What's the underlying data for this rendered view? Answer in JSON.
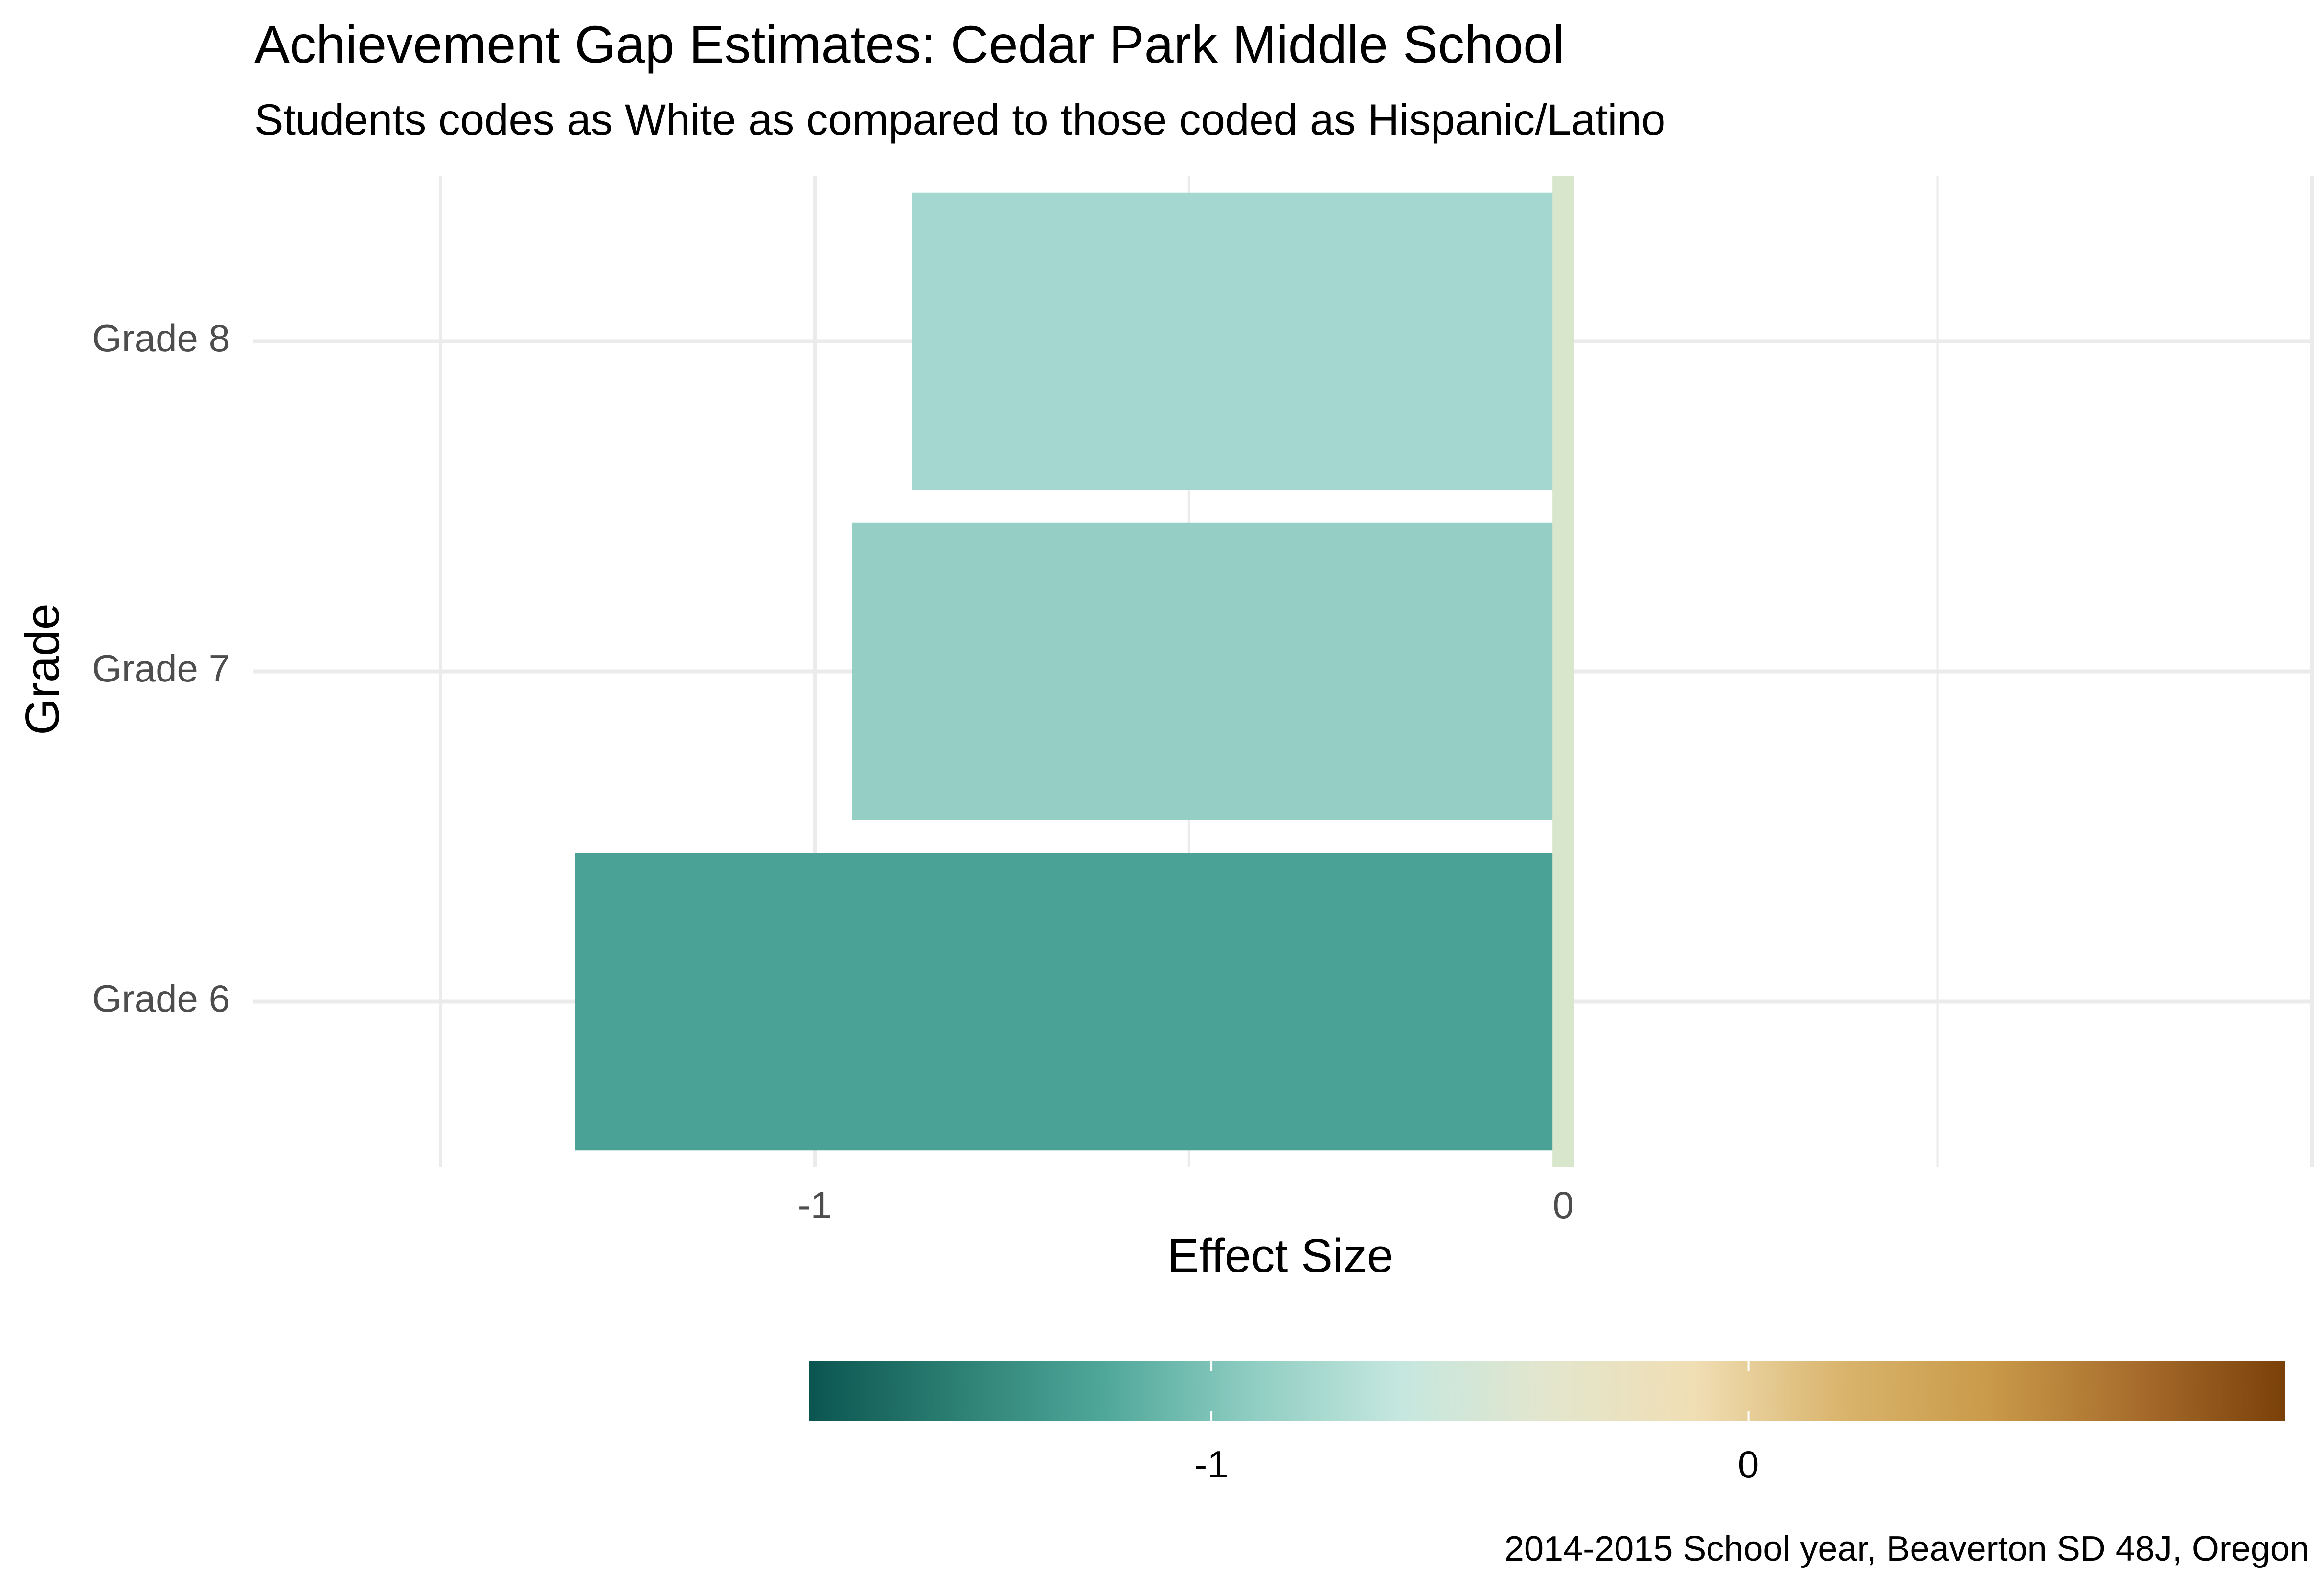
{
  "chart_data": {
    "type": "bar",
    "orientation": "horizontal",
    "title": "Achievement Gap Estimates: Cedar Park Middle School",
    "subtitle": "Students codes as White as compared to those coded as Hispanic/Latino",
    "xlabel": "Effect Size",
    "ylabel": "Grade",
    "caption": "2014-2015 School year, Beaverton SD 48J, Oregon",
    "categories": [
      "Grade 6",
      "Grade 7",
      "Grade 8"
    ],
    "values": [
      -1.32,
      -0.95,
      -0.87
    ],
    "xlim": [
      -1.75,
      1.0
    ],
    "x_ticks": [
      -1,
      0
    ],
    "x_tick_labels": [
      "-1",
      "0"
    ],
    "reference_line": 0,
    "grid": true,
    "colors": {
      "Grade 6": "#4aa296",
      "Grade 7": "#95cec5",
      "Grade 8": "#a4d7cf",
      "reference_line": "#d8e6cc",
      "grid": "#ebebeb"
    },
    "legend": {
      "position": "bottom",
      "type": "colorbar",
      "ticks": [
        -1,
        0
      ],
      "tick_labels": [
        "-1",
        "0"
      ],
      "range": [
        -1.75,
        1.0
      ],
      "gradient": [
        "#0b5550",
        "#2c7f73",
        "#4fa79a",
        "#8fcdc2",
        "#c5e7df",
        "#e3e6cd",
        "#f0deb4",
        "#d9b46c",
        "#c99a49",
        "#a76c2c",
        "#7a4009"
      ]
    }
  }
}
